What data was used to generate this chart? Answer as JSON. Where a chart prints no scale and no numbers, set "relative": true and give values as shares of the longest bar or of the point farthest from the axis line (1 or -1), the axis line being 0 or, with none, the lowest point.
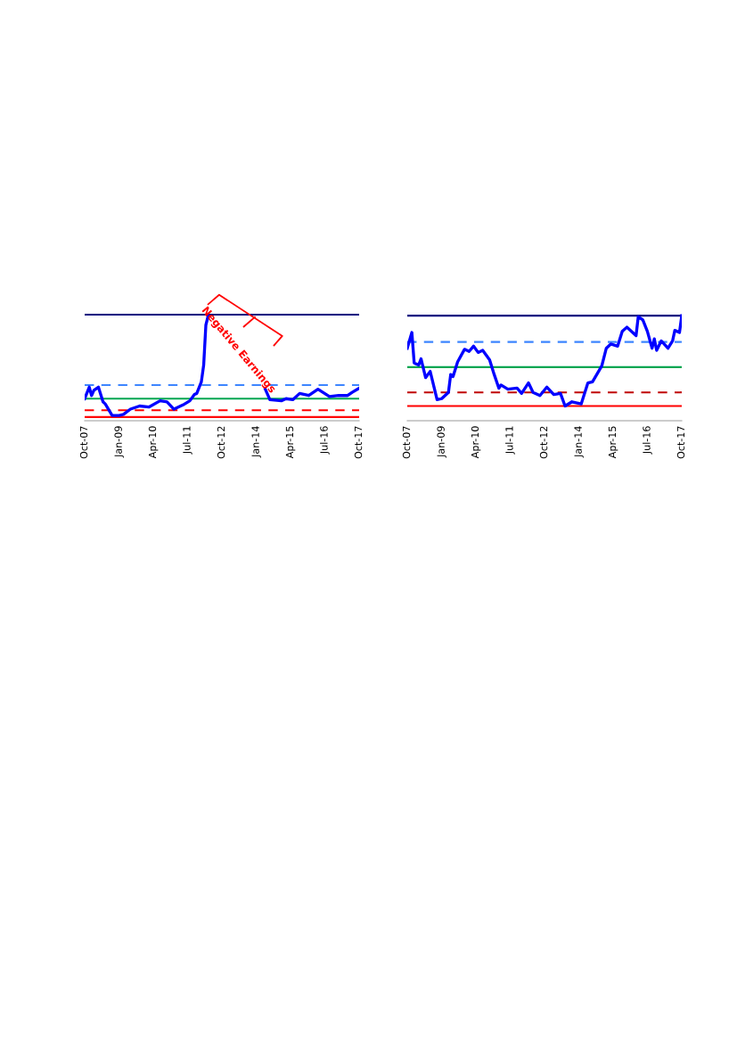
{
  "chart_data": [
    {
      "type": "line",
      "relative": true,
      "xlim": [
        "2007-10",
        "2017-10"
      ],
      "xticks": [
        {
          "value": "2007-10",
          "label": "Oct-07"
        },
        {
          "value": "2009-01",
          "label": "Jan-09"
        },
        {
          "value": "2010-04",
          "label": "Apr-10"
        },
        {
          "value": "2011-07",
          "label": "Jul-11"
        },
        {
          "value": "2012-10",
          "label": "Oct-12"
        },
        {
          "value": "2014-01",
          "label": "Jan-14"
        },
        {
          "value": "2015-04",
          "label": "Apr-15"
        },
        {
          "value": "2016-07",
          "label": "Jul-16"
        },
        {
          "value": "2017-10",
          "label": "Oct-17"
        }
      ],
      "series": [
        {
          "color": "#0000ff",
          "x": [
            "2007-10",
            "2007-12",
            "2008-01",
            "2008-02",
            "2008-04",
            "2008-06",
            "2008-07",
            "2008-10",
            "2009-01",
            "2009-03",
            "2009-06",
            "2009-10",
            "2010-02",
            "2010-07",
            "2010-10",
            "2011-01",
            "2011-05",
            "2011-08",
            "2011-10",
            "2011-11",
            "2012-01",
            "2012-02",
            "2012-03",
            "2012-04",
            "2013-04",
            "2014-05",
            "2014-07",
            "2014-12",
            "2015-02",
            "2015-05",
            "2015-08",
            "2015-12",
            "2016-04",
            "2016-09",
            "2017-01",
            "2017-05",
            "2017-07",
            "2017-10"
          ],
          "values": [
            0.21,
            0.32,
            0.24,
            0.29,
            0.32,
            0.18,
            0.16,
            0.05,
            0.05,
            0.06,
            0.11,
            0.14,
            0.13,
            0.19,
            0.18,
            0.11,
            0.15,
            0.19,
            0.25,
            0.26,
            0.37,
            0.53,
            0.91,
            1.0,
            null,
            0.3,
            0.2,
            0.19,
            0.21,
            0.2,
            0.26,
            0.24,
            0.3,
            0.23,
            0.24,
            0.24,
            0.27,
            0.31
          ]
        }
      ],
      "ref_lines": [
        {
          "axis": "y",
          "value": 1.01,
          "color": "#000080",
          "line_style": "solid"
        },
        {
          "axis": "y",
          "value": 0.34,
          "color": "#3d85ff",
          "line_style": "dashed"
        },
        {
          "axis": "y",
          "value": 0.21,
          "color": "#00a651",
          "line_style": "solid"
        },
        {
          "axis": "y",
          "value": 0.1,
          "color": "#ff0000",
          "line_style": "dashed"
        },
        {
          "axis": "y",
          "value": 0.035,
          "color": "#ff0000",
          "line_style": "solid"
        }
      ],
      "annotations": [
        "Negative Earnings"
      ],
      "grid": false,
      "marker": "none",
      "line_style": "solid"
    },
    {
      "type": "line",
      "relative": true,
      "xlim": [
        "2007-10",
        "2017-10"
      ],
      "xticks": [
        {
          "value": "2007-10",
          "label": "Oct-07"
        },
        {
          "value": "2009-01",
          "label": "Jan-09"
        },
        {
          "value": "2010-04",
          "label": "Apr-10"
        },
        {
          "value": "2011-07",
          "label": "Jul-11"
        },
        {
          "value": "2012-10",
          "label": "Oct-12"
        },
        {
          "value": "2014-01",
          "label": "Jan-14"
        },
        {
          "value": "2015-04",
          "label": "Apr-15"
        },
        {
          "value": "2016-07",
          "label": "Jul-16"
        },
        {
          "value": "2017-10",
          "label": "Oct-17"
        }
      ],
      "series": [
        {
          "color": "#0000ff",
          "x": [
            "2007-10",
            "2007-12",
            "2008-01",
            "2008-03",
            "2008-04",
            "2008-06",
            "2008-08",
            "2008-11",
            "2009-01",
            "2009-04",
            "2009-05",
            "2009-06",
            "2009-08",
            "2009-11",
            "2010-01",
            "2010-03",
            "2010-05",
            "2010-07",
            "2010-10",
            "2010-12",
            "2011-02",
            "2011-03",
            "2011-06",
            "2011-10",
            "2011-12",
            "2012-03",
            "2012-05",
            "2012-08",
            "2012-11",
            "2013-02",
            "2013-05",
            "2013-07",
            "2013-10",
            "2014-02",
            "2014-05",
            "2014-07",
            "2014-11",
            "2015-01",
            "2015-03",
            "2015-06",
            "2015-08",
            "2015-10",
            "2016-02",
            "2016-03",
            "2016-05",
            "2016-07",
            "2016-09",
            "2016-10",
            "2016-11",
            "2017-01",
            "2017-04",
            "2017-06",
            "2017-07",
            "2017-09",
            "2017-10"
          ],
          "values": [
            0.69,
            0.84,
            0.55,
            0.53,
            0.59,
            0.41,
            0.47,
            0.2,
            0.21,
            0.27,
            0.44,
            0.42,
            0.56,
            0.68,
            0.66,
            0.71,
            0.65,
            0.67,
            0.58,
            0.44,
            0.31,
            0.34,
            0.3,
            0.31,
            0.26,
            0.36,
            0.27,
            0.24,
            0.32,
            0.25,
            0.26,
            0.14,
            0.18,
            0.16,
            0.36,
            0.37,
            0.52,
            0.69,
            0.73,
            0.71,
            0.85,
            0.89,
            0.81,
            0.99,
            0.96,
            0.85,
            0.69,
            0.78,
            0.67,
            0.76,
            0.69,
            0.76,
            0.86,
            0.84,
            1.0
          ]
        }
      ],
      "ref_lines": [
        {
          "axis": "y",
          "value": 1.0,
          "color": "#000080",
          "line_style": "solid"
        },
        {
          "axis": "y",
          "value": 0.75,
          "color": "#3d85ff",
          "line_style": "dashed"
        },
        {
          "axis": "y",
          "value": 0.51,
          "color": "#00a651",
          "line_style": "solid"
        },
        {
          "axis": "y",
          "value": 0.27,
          "color": "#c00000",
          "line_style": "dashed"
        },
        {
          "axis": "y",
          "value": 0.14,
          "color": "#ff0000",
          "line_style": "solid"
        }
      ],
      "grid": false,
      "marker": "none",
      "line_style": "solid"
    }
  ]
}
